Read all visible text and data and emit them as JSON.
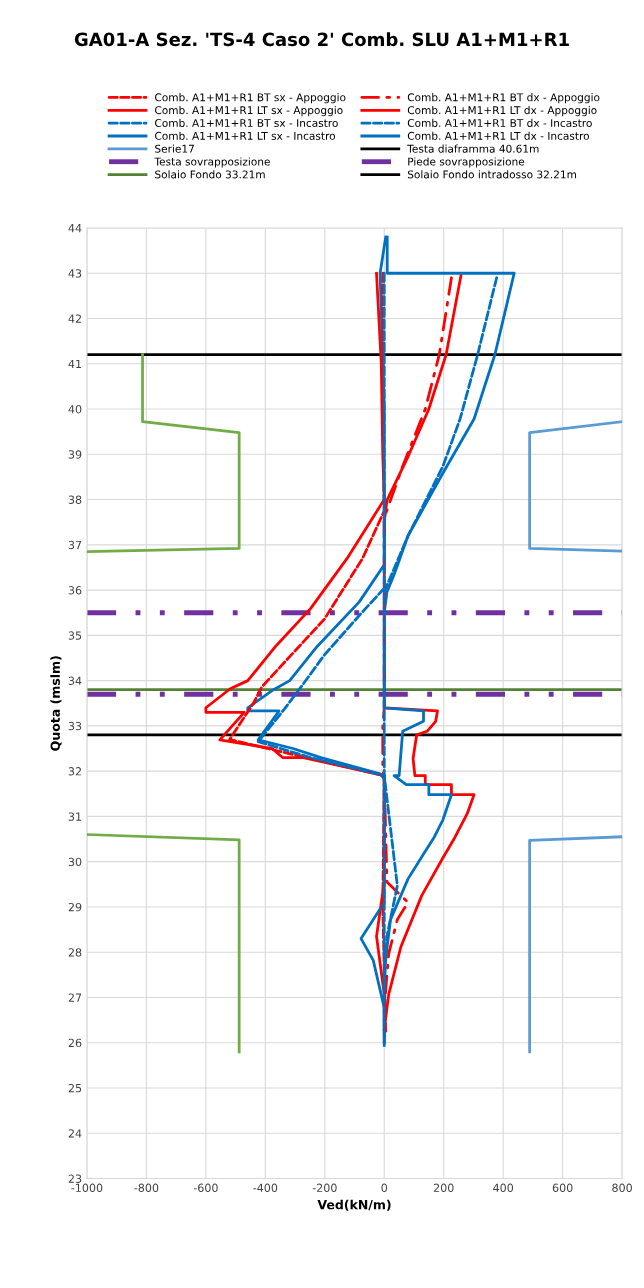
{
  "chart_data": {
    "type": "line",
    "title": "GA01-A Sez. 'TS-4 Caso 2' Comb. SLU A1+M1+R1",
    "xlabel": "Ved(kN/m)",
    "ylabel": "Quota (mslm)",
    "xlim": [
      -1000,
      800
    ],
    "xticks": [
      -1000,
      -800,
      -600,
      -400,
      -200,
      0,
      200,
      400,
      600,
      800
    ],
    "ylim": [
      23,
      44
    ],
    "yticks": [
      23,
      24,
      25,
      26,
      27,
      28,
      29,
      30,
      31,
      32,
      33,
      34,
      35,
      36,
      37,
      38,
      39,
      40,
      41,
      42,
      43,
      44
    ],
    "grid": true,
    "legend": "top",
    "series": [
      {
        "name": "Comb. A1+M1+R1 BT sx - Appoggio",
        "color": "#ff0000",
        "line_style": "dashed",
        "x": [
          -5,
          -5,
          0,
          -73,
          -201,
          -318,
          -412,
          -440,
          -520,
          -360,
          0,
          -5,
          5
        ],
        "values": [
          43.0,
          40.0,
          37.75,
          36.7,
          35.36,
          34.53,
          33.86,
          33.5,
          32.7,
          32.45,
          31.9,
          29.0,
          26.2
        ]
      },
      {
        "name": "Comb. A1+M1+R1 BT dx - Appoggio",
        "color": "#ff0000",
        "line_style": "dashdot",
        "x": [
          226,
          185,
          138,
          60,
          0,
          0,
          -5,
          -5,
          0,
          9,
          80,
          44,
          15,
          0
        ],
        "values": [
          42.9,
          41.2,
          40.0,
          38.7,
          37.6,
          33.4,
          33.0,
          32.0,
          31.9,
          29.55,
          29.1,
          28.72,
          27.97,
          26.77
        ]
      },
      {
        "name": "Comb. A1+M1+R1 LT sx - Appoggio",
        "color": "#ff0000",
        "line_style": "solid",
        "x": [
          -26,
          -10,
          -5,
          0,
          -125,
          -248,
          -365,
          -459,
          -518,
          -600,
          -600,
          -471,
          -553,
          -377,
          -342,
          -272,
          0,
          0,
          -26,
          0,
          0
        ],
        "values": [
          43.0,
          41.0,
          39.0,
          38.0,
          36.7,
          35.59,
          34.76,
          34.0,
          33.82,
          33.4,
          33.3,
          33.3,
          32.69,
          32.5,
          32.3,
          32.3,
          31.9,
          29.55,
          28.35,
          27.07,
          26.0
        ]
      },
      {
        "name": "Comb. A1+M1+R1 LT dx - Appoggio",
        "color": "#ff0000",
        "line_style": "solid",
        "x": [
          258,
          208,
          150,
          80,
          9,
          0,
          0,
          179,
          173,
          144,
          109,
          97,
          103,
          138,
          138,
          226,
          226,
          302,
          279,
          238,
          197,
          126,
          56,
          15,
          0
        ],
        "values": [
          42.95,
          41.2,
          40.0,
          38.95,
          37.98,
          37.5,
          33.4,
          33.33,
          33.1,
          32.88,
          32.8,
          32.28,
          31.9,
          31.9,
          31.7,
          31.7,
          31.48,
          31.48,
          31.06,
          30.54,
          30.08,
          29.25,
          28.12,
          27.07,
          26.3
        ]
      },
      {
        "name": "Comb. A1+M1+R1 BT sx - Incastro",
        "color": "#0070c0",
        "line_style": "dashed",
        "x": [
          0,
          0,
          -84,
          -201,
          -272,
          -336,
          -424,
          -248,
          0,
          0,
          0
        ],
        "values": [
          43.0,
          36.04,
          35.44,
          34.57,
          33.93,
          33.37,
          32.65,
          32.3,
          31.9,
          29.0,
          26.0
        ]
      },
      {
        "name": "Comb. A1+M1+R1 BT dx - Incastro",
        "color": "#0070c0",
        "line_style": "dashed",
        "x": [
          378,
          314,
          255,
          197,
          80,
          0,
          0,
          0,
          44,
          9,
          0
        ],
        "values": [
          42.9,
          41.2,
          39.78,
          38.73,
          37.2,
          35.96,
          33.4,
          31.9,
          29.47,
          28.35,
          27.2
        ]
      },
      {
        "name": "Comb. A1+M1+R1 LT sx - Incastro",
        "color": "#0070c0",
        "line_style": "solid",
        "x": [
          5,
          -14,
          0,
          0,
          0,
          -84,
          -225,
          -318,
          -377,
          -459,
          -459,
          -354,
          -424,
          -307,
          -213,
          -14,
          0,
          0,
          -78,
          -37,
          0,
          0
        ],
        "values": [
          43.8,
          43.0,
          40.0,
          38.0,
          36.56,
          35.74,
          34.76,
          34.0,
          33.78,
          33.4,
          33.33,
          33.33,
          32.69,
          32.5,
          32.3,
          31.94,
          31.83,
          29.1,
          28.3,
          27.82,
          26.77,
          25.94
        ]
      },
      {
        "name": "Comb. A1+M1+R1 LT dx - Incastro",
        "color": "#0070c0",
        "line_style": "solid",
        "x": [
          10,
          10,
          437,
          372,
          302,
          197,
          80,
          33,
          9,
          0,
          0,
          132,
          132,
          62,
          50,
          33,
          74,
          150,
          150,
          226,
          197,
          168,
          138,
          80,
          21,
          0,
          0
        ],
        "values": [
          43.8,
          43.0,
          43.0,
          41.2,
          39.78,
          38.58,
          37.2,
          36.34,
          35.96,
          35.5,
          33.4,
          33.33,
          33.1,
          32.88,
          31.9,
          31.9,
          31.7,
          31.7,
          31.48,
          31.48,
          30.92,
          30.54,
          30.23,
          29.62,
          28.72,
          27.6,
          26.3
        ]
      },
      {
        "color": "#70ad47",
        "line_style": "solid",
        "x": [
          -813,
          -813,
          -488,
          -488,
          -1000,
          null,
          -1000,
          -488,
          -488
        ],
        "values": [
          41.2,
          39.72,
          39.48,
          36.92,
          36.85,
          null,
          30.6,
          30.48,
          25.8
        ]
      },
      {
        "name": "Serie17",
        "color": "#5b9bd5",
        "line_style": "solid",
        "x": [
          800,
          489,
          489,
          800,
          null,
          800,
          489,
          489
        ],
        "values": [
          39.72,
          39.48,
          36.92,
          36.86,
          null,
          30.55,
          30.47,
          25.8
        ]
      }
    ],
    "ref_lines": [
      {
        "axis": "y",
        "value": 41.2,
        "label": "Testa diaframma 40.61m",
        "color": "#000000",
        "line_style": "solid"
      },
      {
        "axis": "y",
        "value": 35.5,
        "label": "Testa sovrapposizione",
        "color": "#7030a0",
        "line_style": "dashdot"
      },
      {
        "axis": "y",
        "value": 33.7,
        "label": "Piede sovrapposizione",
        "color": "#7030a0",
        "line_style": "dashdot"
      },
      {
        "axis": "y",
        "value": 33.8,
        "label": "Solaio Fondo 33.21m",
        "color": "#548235",
        "line_style": "solid"
      },
      {
        "axis": "y",
        "value": 32.8,
        "label": "Solaio Fondo intradosso 32.21m",
        "color": "#000000",
        "line_style": "solid"
      }
    ]
  }
}
